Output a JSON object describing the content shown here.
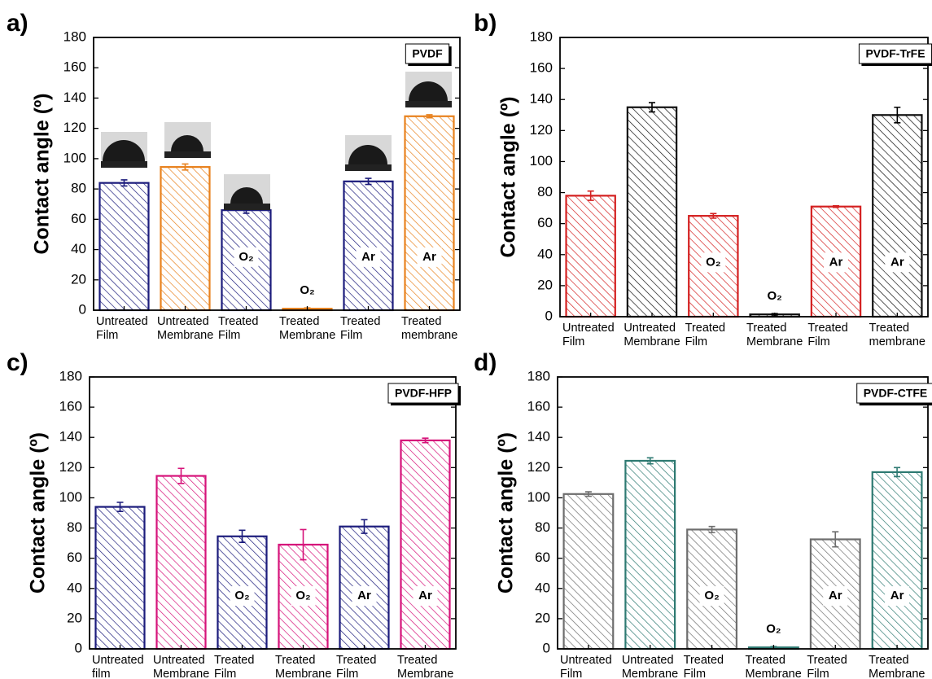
{
  "chart_data": [
    {
      "type": "bar",
      "panel_label": "a)",
      "title": "PVDF",
      "ylabel": "Contact angle (º)",
      "categories": [
        [
          "Untreated",
          "Film"
        ],
        [
          "Untreated",
          "Membrane"
        ],
        [
          "Treated",
          "Film"
        ],
        [
          "Treated",
          "Membrane"
        ],
        [
          "Treated",
          "Film"
        ],
        [
          "Treated",
          "membrane"
        ]
      ],
      "values": [
        84,
        94.5,
        66,
        1,
        85,
        128
      ],
      "errors": [
        2,
        2,
        2,
        0.5,
        2,
        1
      ],
      "colors": [
        "#1c1c7c",
        "#e8821e",
        "#1c1c7c",
        "#e8821e",
        "#1c1c7c",
        "#e8821e"
      ],
      "annotations": [
        null,
        null,
        "O₂",
        "O₂",
        "Ar",
        "Ar"
      ],
      "ylim": [
        0,
        180
      ],
      "yticks": [
        0,
        20,
        40,
        60,
        80,
        100,
        120,
        140,
        160,
        180
      ]
    },
    {
      "type": "bar",
      "panel_label": "b)",
      "title": "PVDF-TrFE",
      "ylabel": "Contact angle (º)",
      "categories": [
        [
          "Untreated",
          "Film"
        ],
        [
          "Untreated",
          "Membrane"
        ],
        [
          "Treated",
          "Film"
        ],
        [
          "Treated",
          "Membrane"
        ],
        [
          "Treated",
          "Film"
        ],
        [
          "Treated",
          "membrane"
        ]
      ],
      "values": [
        78,
        135,
        65,
        1.5,
        71,
        130
      ],
      "errors": [
        3,
        3,
        1.5,
        0.5,
        0.5,
        5
      ],
      "colors": [
        "#d42020",
        "#111111",
        "#d42020",
        "#111111",
        "#d42020",
        "#111111"
      ],
      "annotations": [
        null,
        null,
        "O₂",
        "O₂",
        "Ar",
        "Ar"
      ],
      "ylim": [
        0,
        180
      ],
      "yticks": [
        0,
        20,
        40,
        60,
        80,
        100,
        120,
        140,
        160,
        180
      ]
    },
    {
      "type": "bar",
      "panel_label": "c)",
      "title": "PVDF-HFP",
      "ylabel": "Contact angle (º)",
      "categories": [
        [
          "Untreated",
          "film"
        ],
        [
          "Untreated",
          "Membrane"
        ],
        [
          "Treated",
          "Film"
        ],
        [
          "Treated",
          "Membrane"
        ],
        [
          "Treated",
          "Film"
        ],
        [
          "Treated",
          "Membrane"
        ]
      ],
      "values": [
        94,
        114.5,
        74.5,
        69,
        81,
        138
      ],
      "errors": [
        3,
        5,
        4,
        10,
        4.5,
        1.5
      ],
      "colors": [
        "#1c1c7c",
        "#d6137a",
        "#1c1c7c",
        "#d6137a",
        "#1c1c7c",
        "#d6137a"
      ],
      "annotations": [
        null,
        null,
        "O₂",
        "O₂",
        "Ar",
        "Ar"
      ],
      "ylim": [
        0,
        180
      ],
      "yticks": [
        0,
        20,
        40,
        60,
        80,
        100,
        120,
        140,
        160,
        180
      ]
    },
    {
      "type": "bar",
      "panel_label": "d)",
      "title": "PVDF-CTFE",
      "ylabel": "Contact angle (º)",
      "categories": [
        [
          "Untreated",
          "Film"
        ],
        [
          "Untreated",
          "Membrane"
        ],
        [
          "Treated",
          "Film"
        ],
        [
          "Treated",
          "Membrane"
        ],
        [
          "Treated",
          "Film"
        ],
        [
          "Treated",
          "Membrane"
        ]
      ],
      "values": [
        102.5,
        124.5,
        79,
        1,
        72.5,
        117
      ],
      "errors": [
        1.5,
        2,
        2,
        0.5,
        5,
        3
      ],
      "colors": [
        "#6e6e6e",
        "#2e7a72",
        "#6e6e6e",
        "#2e7a72",
        "#6e6e6e",
        "#2e7a72"
      ],
      "annotations": [
        null,
        null,
        "O₂",
        "O₂",
        "Ar",
        "Ar"
      ],
      "ylim": [
        0,
        180
      ],
      "yticks": [
        0,
        20,
        40,
        60,
        80,
        100,
        120,
        140,
        160,
        180
      ]
    }
  ]
}
